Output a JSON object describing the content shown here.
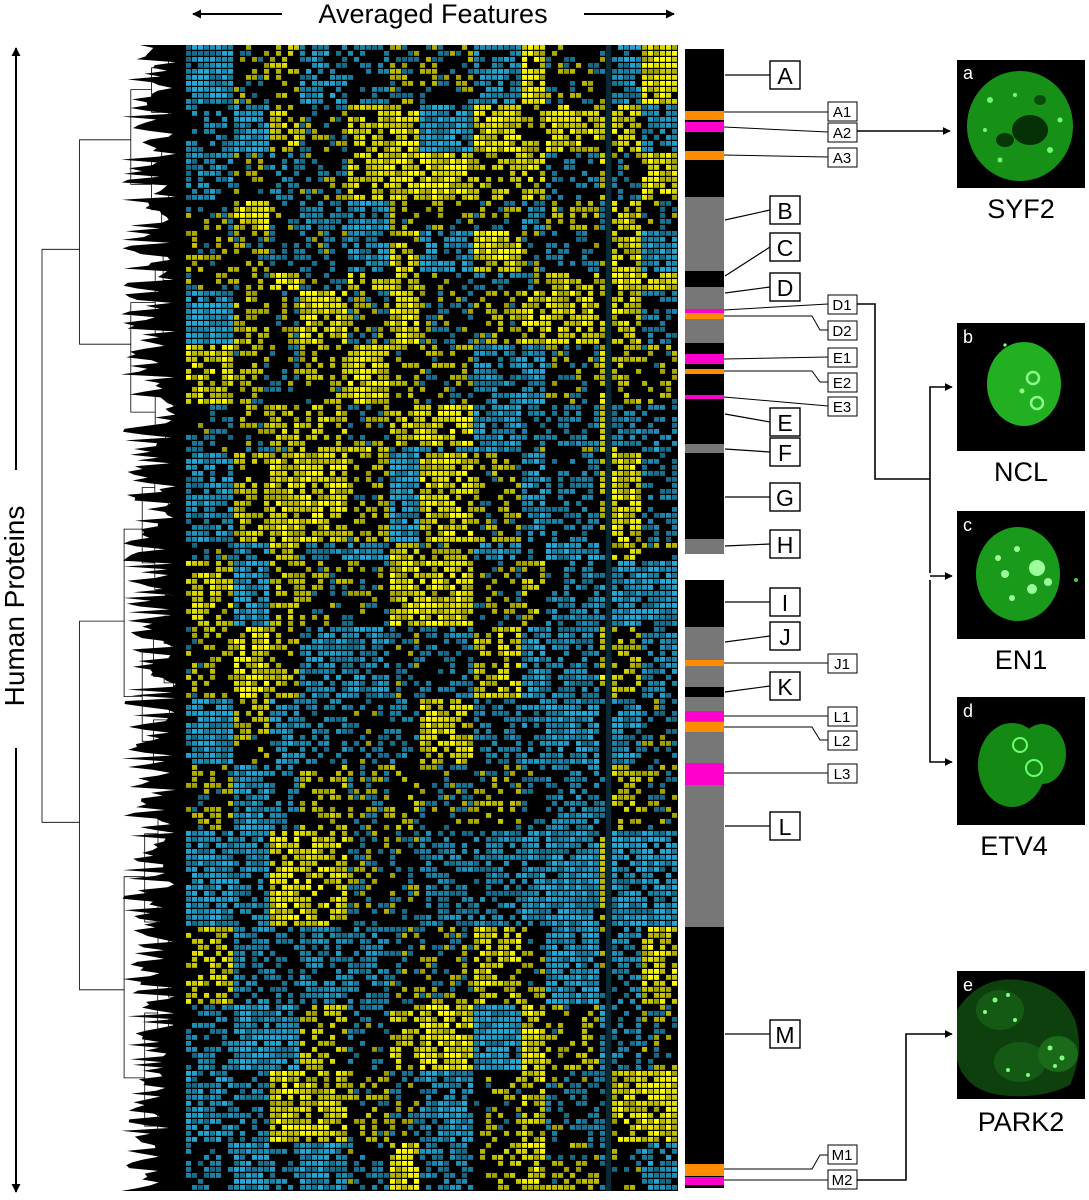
{
  "figure": {
    "top_axis_label": "Averaged Features",
    "left_axis_label": "Human Proteins",
    "colors": {
      "high": "#ffff00",
      "low": "#25a8d6",
      "mid": "#000000",
      "cluster_dark": "#000000",
      "cluster_gray": "#777777",
      "highlight_orange": "#ff8c00",
      "highlight_magenta": "#ff00cc",
      "cell_green": "#2bd62b"
    },
    "major_clusters": [
      {
        "id": "A",
        "label": "A",
        "shade": "dark"
      },
      {
        "id": "B",
        "label": "B",
        "shade": "gray"
      },
      {
        "id": "C",
        "label": "C",
        "shade": "dark"
      },
      {
        "id": "D",
        "label": "D",
        "shade": "gray"
      },
      {
        "id": "E",
        "label": "E",
        "shade": "dark"
      },
      {
        "id": "F",
        "label": "F",
        "shade": "gray"
      },
      {
        "id": "G",
        "label": "G",
        "shade": "dark"
      },
      {
        "id": "H",
        "label": "H",
        "shade": "gray"
      },
      {
        "id": "I",
        "label": "I",
        "shade": "dark"
      },
      {
        "id": "J",
        "label": "J",
        "shade": "gray"
      },
      {
        "id": "K",
        "label": "K",
        "shade": "dark"
      },
      {
        "id": "L",
        "label": "L",
        "shade": "gray"
      },
      {
        "id": "M",
        "label": "M",
        "shade": "dark"
      }
    ],
    "subclusters": [
      {
        "id": "A1",
        "label": "A1",
        "color": "orange"
      },
      {
        "id": "A2",
        "label": "A2",
        "color": "magenta"
      },
      {
        "id": "A3",
        "label": "A3",
        "color": "orange"
      },
      {
        "id": "D1",
        "label": "D1",
        "color": "magenta"
      },
      {
        "id": "D2",
        "label": "D2",
        "color": "orange"
      },
      {
        "id": "E1",
        "label": "E1",
        "color": "magenta"
      },
      {
        "id": "E2",
        "label": "E2",
        "color": "orange"
      },
      {
        "id": "E3",
        "label": "E3",
        "color": "magenta"
      },
      {
        "id": "J1",
        "label": "J1",
        "color": "orange"
      },
      {
        "id": "L1",
        "label": "L1",
        "color": "magenta"
      },
      {
        "id": "L2",
        "label": "L2",
        "color": "orange"
      },
      {
        "id": "L3",
        "label": "L3",
        "color": "magenta"
      },
      {
        "id": "M1",
        "label": "M1",
        "color": "orange"
      },
      {
        "id": "M2",
        "label": "M2",
        "color": "magenta"
      }
    ],
    "cell_images": [
      {
        "id": "a",
        "letter": "a",
        "protein": "SYF2"
      },
      {
        "id": "b",
        "letter": "b",
        "protein": "NCL"
      },
      {
        "id": "c",
        "letter": "c",
        "protein": "EN1"
      },
      {
        "id": "d",
        "letter": "d",
        "protein": "ETV4"
      },
      {
        "id": "e",
        "letter": "e",
        "protein": "PARK2"
      }
    ]
  }
}
